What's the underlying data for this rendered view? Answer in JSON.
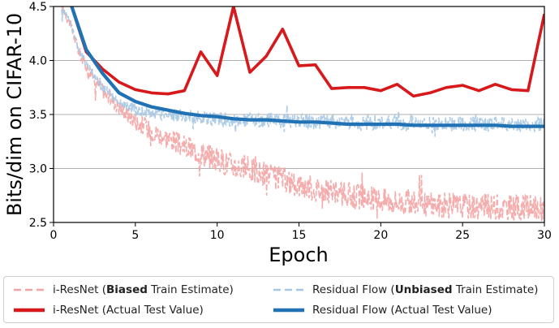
{
  "chart_data": {
    "type": "line",
    "ylabel": "Bits/dim on CIFAR-10",
    "xlabel": "Epoch",
    "xlim": [
      0,
      30
    ],
    "ylim": [
      2.5,
      4.5
    ],
    "xticks": [
      0,
      5,
      10,
      15,
      20,
      25,
      30
    ],
    "yticks": [
      2.5,
      3.0,
      3.5,
      4.0,
      4.5
    ],
    "ytick_labels": [
      "2.5",
      "3.0",
      "3.5",
      "4.0",
      "4.5"
    ],
    "grid": "horizontal",
    "colors": {
      "resnet_train": "#f4a3a3",
      "resnet_test": "#d7191c",
      "flow_train": "#a6c8e4",
      "flow_test": "#2171b5"
    },
    "series": [
      {
        "name": "i-ResNet (Biased Train Estimate)",
        "style": "dashed",
        "anchors": {
          "x": [
            0.5,
            1,
            1.5,
            2,
            3,
            4,
            5,
            6,
            7,
            8,
            9,
            10,
            11,
            12,
            13,
            14,
            15,
            16,
            17,
            18,
            19,
            20,
            22,
            24,
            26,
            28,
            30
          ],
          "values": [
            4.5,
            4.35,
            4.1,
            3.95,
            3.72,
            3.57,
            3.44,
            3.35,
            3.28,
            3.2,
            3.15,
            3.08,
            3.03,
            2.99,
            2.94,
            2.9,
            2.85,
            2.81,
            2.78,
            2.75,
            2.73,
            2.71,
            2.68,
            2.66,
            2.65,
            2.64,
            2.63
          ]
        },
        "noise_amplitude": 0.12
      },
      {
        "name": "i-ResNet (Actual Test Value)",
        "style": "solid",
        "x": [
          1,
          2,
          3,
          4,
          5,
          6,
          7,
          8,
          9,
          10,
          11,
          12,
          13,
          14,
          15,
          16,
          17,
          18,
          19,
          20,
          21,
          22,
          23,
          24,
          25,
          26,
          27,
          28,
          29,
          30
        ],
        "values": [
          4.55,
          4.08,
          3.92,
          3.8,
          3.73,
          3.7,
          3.69,
          3.72,
          4.08,
          3.86,
          4.5,
          3.89,
          4.04,
          4.29,
          3.95,
          3.96,
          3.74,
          3.75,
          3.75,
          3.72,
          3.78,
          3.67,
          3.7,
          3.75,
          3.77,
          3.72,
          3.78,
          3.73,
          3.72,
          4.43
        ]
      },
      {
        "name": "Residual Flow (Unbiased Train Estimate)",
        "style": "dashed",
        "anchors": {
          "x": [
            0.5,
            1,
            1.5,
            2,
            3,
            4,
            5,
            6,
            8,
            10,
            12,
            14,
            16,
            18,
            20,
            22,
            24,
            26,
            28,
            30
          ],
          "values": [
            4.5,
            4.35,
            4.12,
            3.97,
            3.75,
            3.62,
            3.55,
            3.51,
            3.48,
            3.46,
            3.45,
            3.44,
            3.43,
            3.43,
            3.42,
            3.42,
            3.41,
            3.41,
            3.41,
            3.4
          ]
        },
        "noise_amplitude": 0.07
      },
      {
        "name": "Residual Flow (Actual Test Value)",
        "style": "solid",
        "x": [
          1,
          2,
          3,
          4,
          5,
          6,
          7,
          8,
          9,
          10,
          11,
          12,
          13,
          14,
          15,
          16,
          17,
          18,
          19,
          20,
          21,
          22,
          23,
          24,
          25,
          26,
          27,
          28,
          29,
          30
        ],
        "values": [
          4.55,
          4.1,
          3.88,
          3.7,
          3.62,
          3.57,
          3.54,
          3.51,
          3.49,
          3.48,
          3.46,
          3.45,
          3.45,
          3.44,
          3.43,
          3.43,
          3.42,
          3.41,
          3.41,
          3.41,
          3.41,
          3.4,
          3.4,
          3.4,
          3.4,
          3.4,
          3.4,
          3.39,
          3.39,
          3.39
        ]
      }
    ]
  },
  "legend": [
    {
      "prefix": "i-ResNet (",
      "bold": "Biased",
      "suffix": " Train Estimate)",
      "color": "#f4a3a3",
      "style": "dashed"
    },
    {
      "prefix": "Residual Flow (",
      "bold": "Unbiased",
      "suffix": " Train Estimate)",
      "color": "#a6c8e4",
      "style": "dashed"
    },
    {
      "prefix": "i-ResNet (Actual Test Value)",
      "bold": "",
      "suffix": "",
      "color": "#d7191c",
      "style": "solid"
    },
    {
      "prefix": "Residual Flow (Actual Test Value)",
      "bold": "",
      "suffix": "",
      "color": "#2171b5",
      "style": "solid"
    }
  ]
}
